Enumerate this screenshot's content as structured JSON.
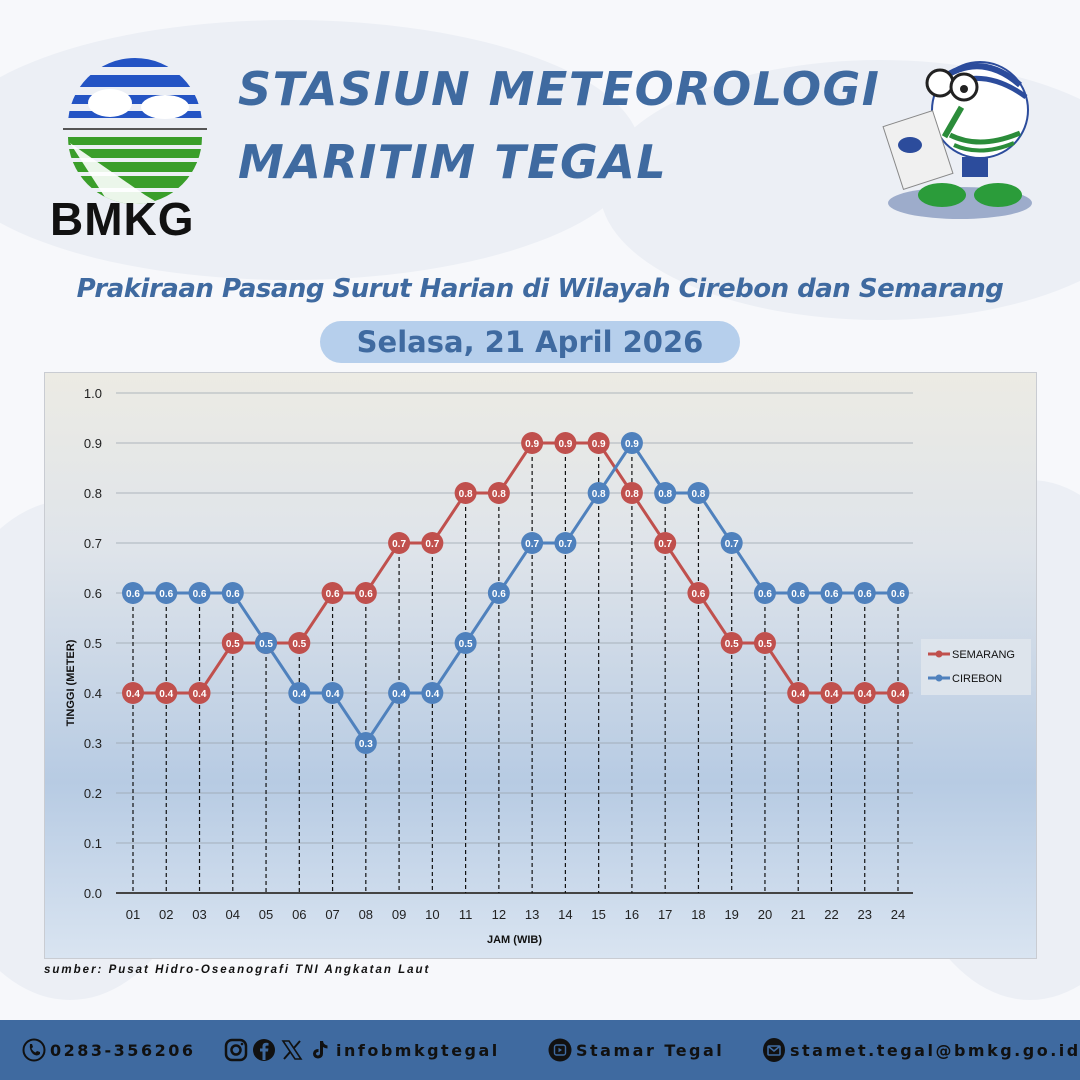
{
  "header": {
    "logo_text": "BMKG",
    "title_line1": "STASIUN METEOROLOGI",
    "title_line2": "MARITIM TEGAL",
    "subtitle": "Prakiraan Pasang Surut Harian di Wilayah Cirebon dan Semarang",
    "date": "Selasa, 21 April 2026"
  },
  "source": "sumber: Pusat Hidro-Oseanografi TNI Angkatan Laut",
  "footer": {
    "phone": "0283-356206",
    "social_handle": "infobmkgtegal",
    "youtube": "Stamar Tegal",
    "email": "stamet.tegal@bmkg.go.id",
    "icons": [
      "phone-icon",
      "instagram-icon",
      "facebook-icon",
      "x-icon",
      "tiktok-icon",
      "youtube-icon",
      "email-icon"
    ]
  },
  "colors": {
    "brand_blue": "#3f6aa0",
    "semarang": "#c0504d",
    "cirebon": "#4f81bd",
    "pill": "#b6cfec"
  },
  "chart_data": {
    "type": "line",
    "title": "Prakiraan Pasang Surut Harian di Wilayah Cirebon dan Semarang",
    "xlabel": "JAM (WIB)",
    "ylabel": "TINGGI (METER)",
    "ylim": [
      0.0,
      1.0
    ],
    "yticks": [
      "0.0",
      "0.1",
      "0.2",
      "0.3",
      "0.4",
      "0.5",
      "0.6",
      "0.7",
      "0.8",
      "0.9",
      "1.0"
    ],
    "grid": true,
    "legend_position": "right",
    "categories": [
      "01",
      "02",
      "03",
      "04",
      "05",
      "06",
      "07",
      "08",
      "09",
      "10",
      "11",
      "12",
      "13",
      "14",
      "15",
      "16",
      "17",
      "18",
      "19",
      "20",
      "21",
      "22",
      "23",
      "24"
    ],
    "series": [
      {
        "name": "SEMARANG",
        "color": "#c0504d",
        "values": [
          0.4,
          0.4,
          0.4,
          0.5,
          0.5,
          0.5,
          0.6,
          0.6,
          0.7,
          0.7,
          0.8,
          0.8,
          0.9,
          0.9,
          0.9,
          0.8,
          0.7,
          0.6,
          0.5,
          0.5,
          0.4,
          0.4,
          0.4,
          0.4
        ]
      },
      {
        "name": "CIREBON",
        "color": "#4f81bd",
        "values": [
          0.6,
          0.6,
          0.6,
          0.6,
          0.5,
          0.4,
          0.4,
          0.3,
          0.4,
          0.4,
          0.5,
          0.6,
          0.7,
          0.7,
          0.8,
          0.9,
          0.8,
          0.8,
          0.7,
          0.6,
          0.6,
          0.6,
          0.6,
          0.6
        ]
      }
    ]
  }
}
